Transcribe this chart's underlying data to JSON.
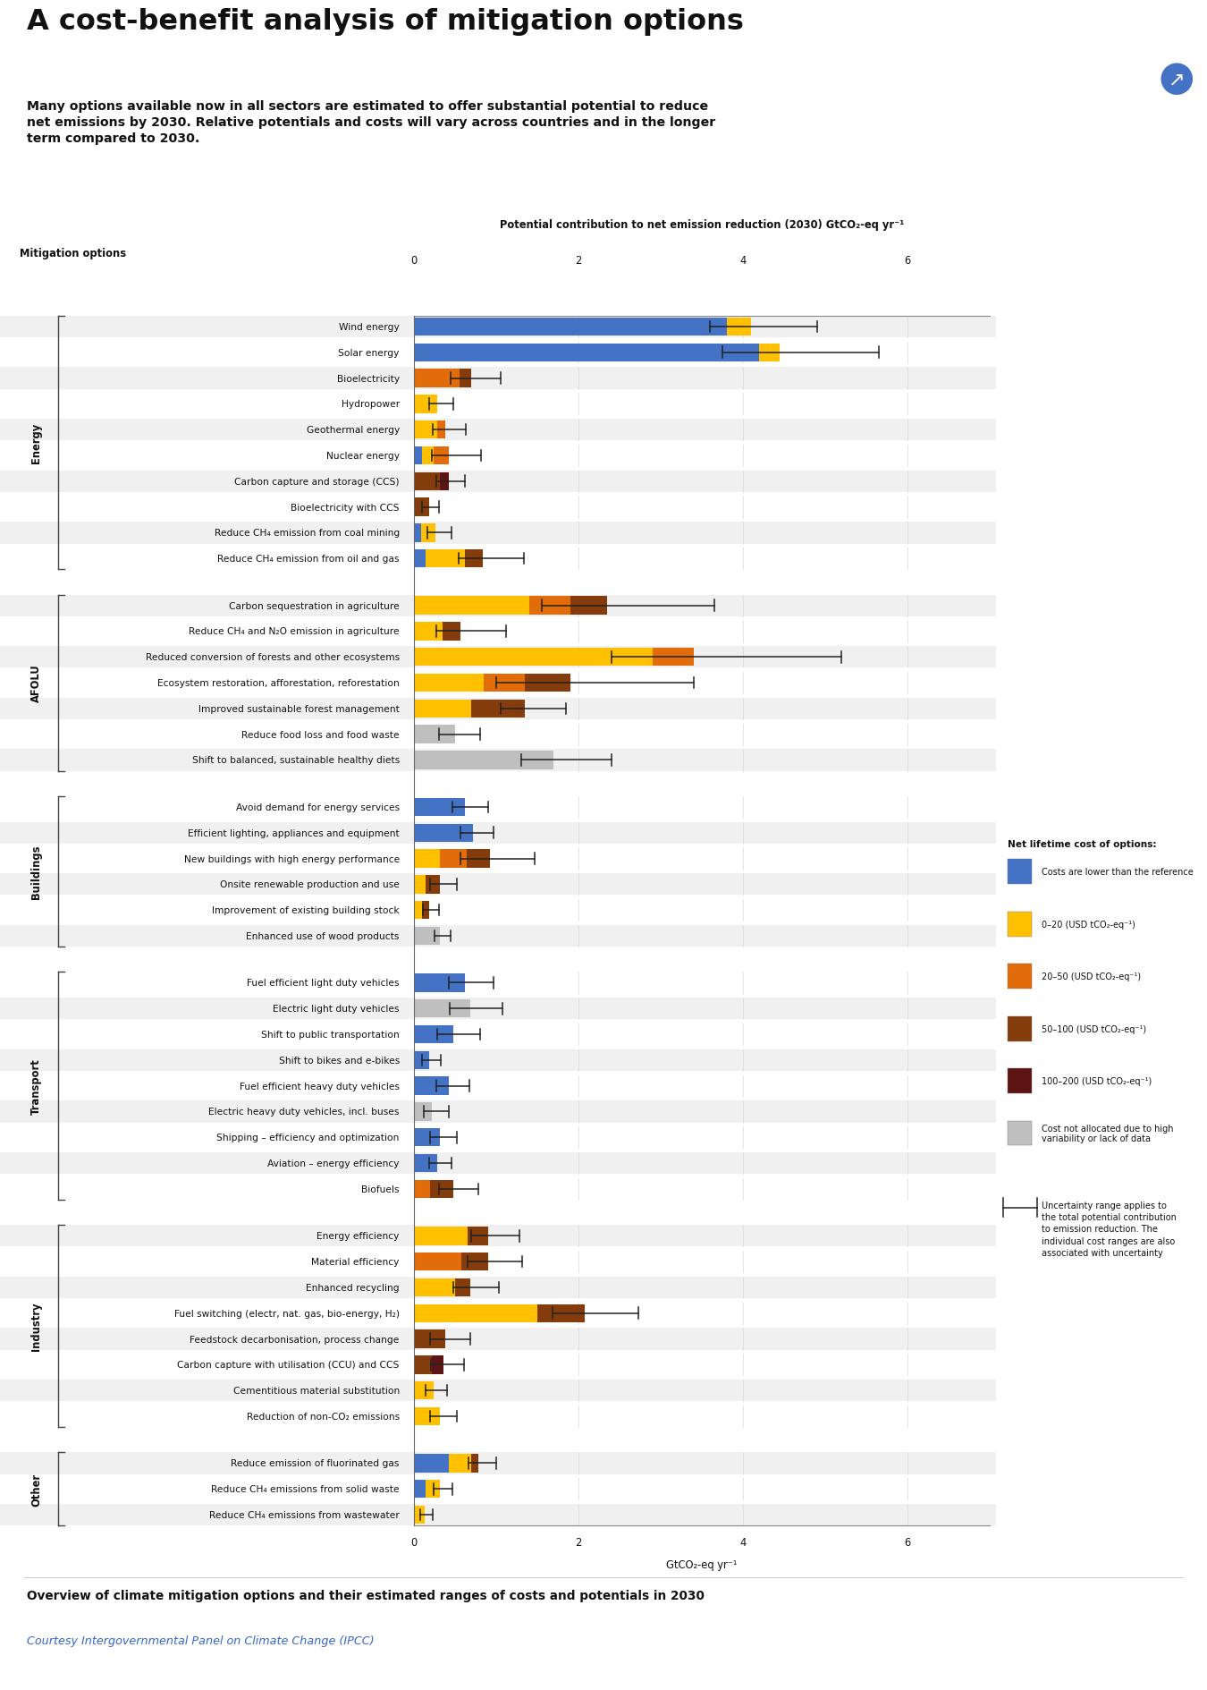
{
  "title": "A cost-benefit analysis of mitigation options",
  "subtitle": "Many options available now in all sectors are estimated to offer substantial potential to reduce\nnet emissions by 2030. Relative potentials and costs will vary across countries and in the longer\nterm compared to 2030.",
  "axis_title": "Potential contribution to net emission reduction (2030) GtCO₂-eq yr⁻¹",
  "xlabel": "GtCO₂-eq yr⁻¹",
  "xlim": [
    0,
    7
  ],
  "xticks": [
    0,
    2,
    4,
    6
  ],
  "footer": "Overview of climate mitigation options and their estimated ranges of costs and potentials in 2030",
  "footer2": "Courtesy Intergovernmental Panel on Climate Change (IPCC)",
  "colors": {
    "blue": "#4472C4",
    "yellow": "#FFC000",
    "orange": "#E26B0A",
    "dark_red": "#843C0C",
    "very_dark_red": "#5C1414",
    "gray": "#BFBFBF",
    "bg_gray": "#F0F0F0"
  },
  "legend": {
    "title": "Net lifetime cost of options:",
    "items": [
      {
        "label": "Costs are lower than the reference",
        "color": "#4472C4"
      },
      {
        "label": "0–20 (USD tCO₂-eq⁻¹)",
        "color": "#FFC000"
      },
      {
        "label": "20–50 (USD tCO₂-eq⁻¹)",
        "color": "#E26B0A"
      },
      {
        "label": "50–100 (USD tCO₂-eq⁻¹)",
        "color": "#843C0C"
      },
      {
        "label": "100–200 (USD tCO₂-eq⁻¹)",
        "color": "#5C1414"
      },
      {
        "label": "Cost not allocated due to high\nvariability or lack of data",
        "color": "#BFBFBF"
      }
    ],
    "uncertainty_note": "Uncertainty range applies to\nthe total potential contribution\nto emission reduction. The\nindividual cost ranges are also\nassociated with uncertainty"
  },
  "sectors": [
    {
      "name": "Energy",
      "options": [
        {
          "label": "Wind energy",
          "segments": [
            {
              "color": "#4472C4",
              "val": 3.8
            },
            {
              "color": "#FFC000",
              "val": 0.3
            }
          ],
          "err_lo": 0.5,
          "err_hi": 0.8
        },
        {
          "label": "Solar energy",
          "segments": [
            {
              "color": "#4472C4",
              "val": 4.2
            },
            {
              "color": "#FFC000",
              "val": 0.25
            }
          ],
          "err_lo": 0.7,
          "err_hi": 1.2
        },
        {
          "label": "Bioelectricity",
          "segments": [
            {
              "color": "#E26B0A",
              "val": 0.55
            },
            {
              "color": "#843C0C",
              "val": 0.15
            }
          ],
          "err_lo": 0.25,
          "err_hi": 0.35
        },
        {
          "label": "Hydropower",
          "segments": [
            {
              "color": "#FFC000",
              "val": 0.28
            }
          ],
          "err_lo": 0.1,
          "err_hi": 0.2
        },
        {
          "label": "Geothermal energy",
          "segments": [
            {
              "color": "#FFC000",
              "val": 0.28
            },
            {
              "color": "#E26B0A",
              "val": 0.1
            }
          ],
          "err_lo": 0.15,
          "err_hi": 0.25
        },
        {
          "label": "Nuclear energy",
          "segments": [
            {
              "color": "#4472C4",
              "val": 0.1
            },
            {
              "color": "#FFC000",
              "val": 0.14
            },
            {
              "color": "#E26B0A",
              "val": 0.18
            }
          ],
          "err_lo": 0.2,
          "err_hi": 0.4
        },
        {
          "label": "Carbon capture and storage (CCS)",
          "segments": [
            {
              "color": "#843C0C",
              "val": 0.32
            },
            {
              "color": "#5C1414",
              "val": 0.1
            }
          ],
          "err_lo": 0.15,
          "err_hi": 0.2
        },
        {
          "label": "Bioelectricity with CCS",
          "segments": [
            {
              "color": "#843C0C",
              "val": 0.18
            }
          ],
          "err_lo": 0.08,
          "err_hi": 0.12
        },
        {
          "label": "Reduce CH₄ emission from coal mining",
          "segments": [
            {
              "color": "#4472C4",
              "val": 0.09
            },
            {
              "color": "#FFC000",
              "val": 0.17
            }
          ],
          "err_lo": 0.1,
          "err_hi": 0.2
        },
        {
          "label": "Reduce CH₄ emission from oil and gas",
          "segments": [
            {
              "color": "#4472C4",
              "val": 0.14
            },
            {
              "color": "#FFC000",
              "val": 0.48
            },
            {
              "color": "#843C0C",
              "val": 0.22
            }
          ],
          "err_lo": 0.3,
          "err_hi": 0.5
        }
      ]
    },
    {
      "name": "AFOLU",
      "options": [
        {
          "label": "Carbon sequestration in agriculture",
          "segments": [
            {
              "color": "#FFC000",
              "val": 1.4
            },
            {
              "color": "#E26B0A",
              "val": 0.5
            },
            {
              "color": "#843C0C",
              "val": 0.45
            }
          ],
          "err_lo": 0.8,
          "err_hi": 1.3
        },
        {
          "label": "Reduce CH₄ and N₂O emission in agriculture",
          "segments": [
            {
              "color": "#FFC000",
              "val": 0.35
            },
            {
              "color": "#843C0C",
              "val": 0.22
            }
          ],
          "err_lo": 0.3,
          "err_hi": 0.55
        },
        {
          "label": "Reduced conversion of forests and other ecosystems",
          "segments": [
            {
              "color": "#FFC000",
              "val": 2.9
            },
            {
              "color": "#E26B0A",
              "val": 0.5
            }
          ],
          "err_lo": 1.0,
          "err_hi": 1.8
        },
        {
          "label": "Ecosystem restoration, afforestation, reforestation",
          "segments": [
            {
              "color": "#FFC000",
              "val": 0.85
            },
            {
              "color": "#E26B0A",
              "val": 0.5
            },
            {
              "color": "#843C0C",
              "val": 0.55
            }
          ],
          "err_lo": 0.9,
          "err_hi": 1.5
        },
        {
          "label": "Improved sustainable forest management",
          "segments": [
            {
              "color": "#FFC000",
              "val": 0.7
            },
            {
              "color": "#843C0C",
              "val": 0.65
            }
          ],
          "err_lo": 0.3,
          "err_hi": 0.5
        },
        {
          "label": "Reduce food loss and food waste",
          "segments": [
            {
              "color": "#BFBFBF",
              "val": 0.5
            }
          ],
          "err_lo": 0.2,
          "err_hi": 0.3
        },
        {
          "label": "Shift to balanced, sustainable healthy diets",
          "segments": [
            {
              "color": "#BFBFBF",
              "val": 1.7
            }
          ],
          "err_lo": 0.4,
          "err_hi": 0.7
        }
      ]
    },
    {
      "name": "Buildings",
      "options": [
        {
          "label": "Avoid demand for energy services",
          "segments": [
            {
              "color": "#4472C4",
              "val": 0.62
            }
          ],
          "err_lo": 0.15,
          "err_hi": 0.28
        },
        {
          "label": "Efficient lighting, appliances and equipment",
          "segments": [
            {
              "color": "#4472C4",
              "val": 0.72
            }
          ],
          "err_lo": 0.15,
          "err_hi": 0.25
        },
        {
          "label": "New buildings with high energy performance",
          "segments": [
            {
              "color": "#FFC000",
              "val": 0.32
            },
            {
              "color": "#E26B0A",
              "val": 0.32
            },
            {
              "color": "#843C0C",
              "val": 0.28
            }
          ],
          "err_lo": 0.35,
          "err_hi": 0.55
        },
        {
          "label": "Onsite renewable production and use",
          "segments": [
            {
              "color": "#FFC000",
              "val": 0.14
            },
            {
              "color": "#843C0C",
              "val": 0.18
            }
          ],
          "err_lo": 0.12,
          "err_hi": 0.2
        },
        {
          "label": "Improvement of existing building stock",
          "segments": [
            {
              "color": "#FFC000",
              "val": 0.1
            },
            {
              "color": "#843C0C",
              "val": 0.08
            }
          ],
          "err_lo": 0.07,
          "err_hi": 0.12
        },
        {
          "label": "Enhanced use of wood products",
          "segments": [
            {
              "color": "#BFBFBF",
              "val": 0.32
            }
          ],
          "err_lo": 0.07,
          "err_hi": 0.12
        }
      ]
    },
    {
      "name": "Transport",
      "options": [
        {
          "label": "Fuel efficient light duty vehicles",
          "segments": [
            {
              "color": "#4472C4",
              "val": 0.62
            }
          ],
          "err_lo": 0.2,
          "err_hi": 0.35
        },
        {
          "label": "Electric light duty vehicles",
          "segments": [
            {
              "color": "#BFBFBF",
              "val": 0.68
            }
          ],
          "err_lo": 0.25,
          "err_hi": 0.4
        },
        {
          "label": "Shift to public transportation",
          "segments": [
            {
              "color": "#4472C4",
              "val": 0.48
            }
          ],
          "err_lo": 0.2,
          "err_hi": 0.32
        },
        {
          "label": "Shift to bikes and e-bikes",
          "segments": [
            {
              "color": "#4472C4",
              "val": 0.18
            }
          ],
          "err_lo": 0.08,
          "err_hi": 0.15
        },
        {
          "label": "Fuel efficient heavy duty vehicles",
          "segments": [
            {
              "color": "#4472C4",
              "val": 0.42
            }
          ],
          "err_lo": 0.15,
          "err_hi": 0.25
        },
        {
          "label": "Electric heavy duty vehicles, incl. buses",
          "segments": [
            {
              "color": "#BFBFBF",
              "val": 0.22
            }
          ],
          "err_lo": 0.1,
          "err_hi": 0.2
        },
        {
          "label": "Shipping – efficiency and optimization",
          "segments": [
            {
              "color": "#4472C4",
              "val": 0.32
            }
          ],
          "err_lo": 0.12,
          "err_hi": 0.2
        },
        {
          "label": "Aviation – energy efficiency",
          "segments": [
            {
              "color": "#4472C4",
              "val": 0.28
            }
          ],
          "err_lo": 0.1,
          "err_hi": 0.18
        },
        {
          "label": "Biofuels",
          "segments": [
            {
              "color": "#E26B0A",
              "val": 0.2
            },
            {
              "color": "#843C0C",
              "val": 0.28
            }
          ],
          "err_lo": 0.18,
          "err_hi": 0.3
        }
      ]
    },
    {
      "name": "Industry",
      "options": [
        {
          "label": "Energy efficiency",
          "segments": [
            {
              "color": "#FFC000",
              "val": 0.65
            },
            {
              "color": "#843C0C",
              "val": 0.25
            }
          ],
          "err_lo": 0.2,
          "err_hi": 0.38
        },
        {
          "label": "Material efficiency",
          "segments": [
            {
              "color": "#E26B0A",
              "val": 0.58
            },
            {
              "color": "#843C0C",
              "val": 0.32
            }
          ],
          "err_lo": 0.25,
          "err_hi": 0.42
        },
        {
          "label": "Enhanced recycling",
          "segments": [
            {
              "color": "#FFC000",
              "val": 0.5
            },
            {
              "color": "#843C0C",
              "val": 0.18
            }
          ],
          "err_lo": 0.2,
          "err_hi": 0.35
        },
        {
          "label": "Fuel switching (electr, nat. gas, bio-energy, H₂)",
          "segments": [
            {
              "color": "#FFC000",
              "val": 1.5
            },
            {
              "color": "#843C0C",
              "val": 0.58
            }
          ],
          "err_lo": 0.4,
          "err_hi": 0.65
        },
        {
          "label": "Feedstock decarbonisation, process change",
          "segments": [
            {
              "color": "#843C0C",
              "val": 0.38
            }
          ],
          "err_lo": 0.18,
          "err_hi": 0.3
        },
        {
          "label": "Carbon capture with utilisation (CCU) and CCS",
          "segments": [
            {
              "color": "#843C0C",
              "val": 0.22
            },
            {
              "color": "#5C1414",
              "val": 0.14
            }
          ],
          "err_lo": 0.15,
          "err_hi": 0.25
        },
        {
          "label": "Cementitious material substitution",
          "segments": [
            {
              "color": "#FFC000",
              "val": 0.24
            }
          ],
          "err_lo": 0.1,
          "err_hi": 0.16
        },
        {
          "label": "Reduction of non-CO₂ emissions",
          "segments": [
            {
              "color": "#FFC000",
              "val": 0.32
            }
          ],
          "err_lo": 0.12,
          "err_hi": 0.2
        }
      ]
    },
    {
      "name": "Other",
      "options": [
        {
          "label": "Reduce emission of fluorinated gas",
          "segments": [
            {
              "color": "#4472C4",
              "val": 0.42
            },
            {
              "color": "#FFC000",
              "val": 0.28
            },
            {
              "color": "#843C0C",
              "val": 0.08
            }
          ],
          "err_lo": 0.12,
          "err_hi": 0.22
        },
        {
          "label": "Reduce CH₄ emissions from solid waste",
          "segments": [
            {
              "color": "#4472C4",
              "val": 0.14
            },
            {
              "color": "#FFC000",
              "val": 0.18
            }
          ],
          "err_lo": 0.08,
          "err_hi": 0.15
        },
        {
          "label": "Reduce CH₄ emissions from wastewater",
          "segments": [
            {
              "color": "#FFC000",
              "val": 0.13
            }
          ],
          "err_lo": 0.05,
          "err_hi": 0.1
        }
      ]
    }
  ]
}
